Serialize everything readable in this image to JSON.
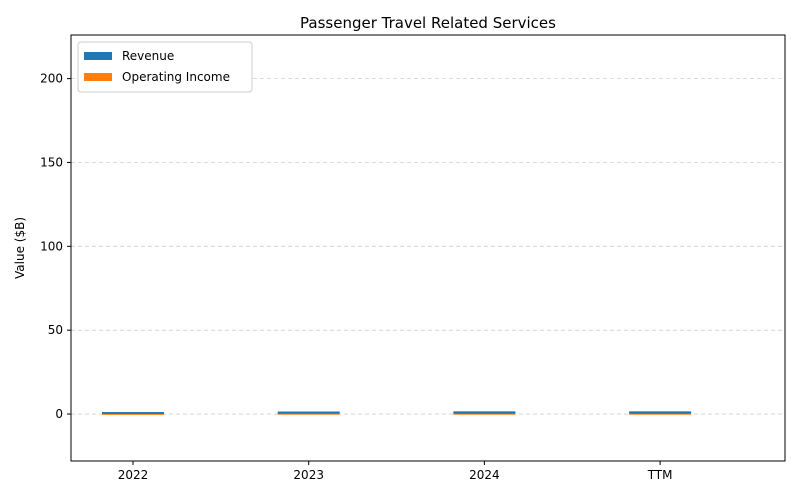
{
  "chart_data": {
    "type": "bar",
    "title": "Passenger Travel Related Services",
    "xlabel": "",
    "ylabel": "Value ($B)",
    "categories": [
      "2022",
      "2023",
      "2024",
      "TTM"
    ],
    "series": [
      {
        "name": "Revenue",
        "color": "#1f77b4",
        "values": [
          1.2,
          1.5,
          1.6,
          1.6
        ]
      },
      {
        "name": "Operating Income",
        "color": "#ff7f0e",
        "values": [
          0.1,
          0.2,
          0.2,
          0.2
        ]
      }
    ],
    "ylim": [
      -28,
      226
    ],
    "yticks": [
      0,
      50,
      100,
      150,
      200
    ],
    "grid": true,
    "legend_position": "top-left"
  }
}
